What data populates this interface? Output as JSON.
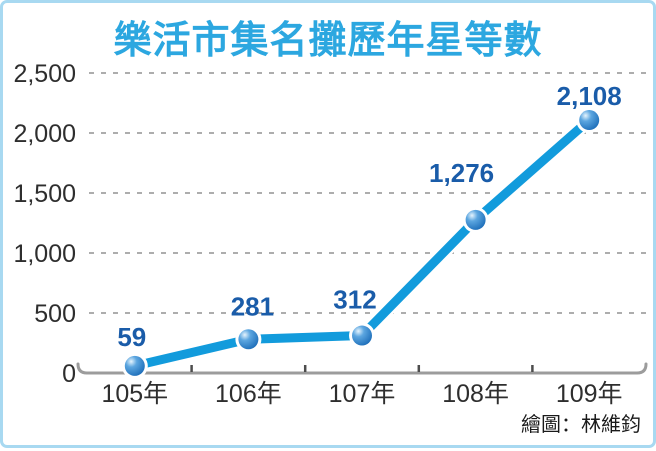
{
  "title": "樂活市集名攤歷年星等數",
  "credit": "繪圖：林維鈞",
  "chart_data": {
    "type": "line",
    "title": "樂活市集名攤歷年星等數",
    "categories": [
      "105年",
      "106年",
      "107年",
      "108年",
      "109年"
    ],
    "values": [
      59,
      281,
      312,
      1276,
      2108
    ],
    "value_labels": [
      "59",
      "281",
      "312",
      "1,276",
      "2,108"
    ],
    "xlabel": "",
    "ylabel": "",
    "ylim": [
      0,
      2500
    ],
    "y_ticks": [
      0,
      500,
      1000,
      1500,
      2000,
      2500
    ],
    "y_tick_labels": [
      "0",
      "500",
      "1,000",
      "1,500",
      "2,000",
      "2,500"
    ],
    "grid": "dashed-horizontal",
    "legend": "none",
    "credit": "繪圖：林維鈞",
    "colors": {
      "line": "#129BDC",
      "marker_highlight": "#E6F4FD",
      "marker_mid": "#5CA6E0",
      "marker_edge": "#1B6CB8",
      "marker_halo": "#FFFFFF",
      "data_label": "#1A5CA9",
      "title": "#2CA7E0",
      "axis": "#9C9C9C",
      "tick": "#4D4D4D",
      "gridline": "#ADADAD",
      "frame_border": "#A8D9F1",
      "axis_text": "#2E2E2E",
      "credit_text": "#1A1A1A"
    }
  }
}
